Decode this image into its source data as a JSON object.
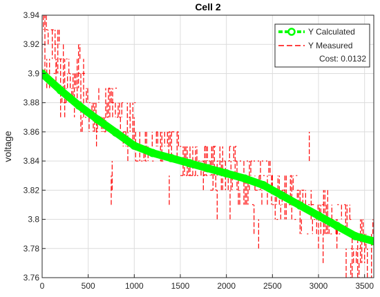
{
  "chart_data": {
    "type": "line",
    "title": "Cell 2",
    "xlabel": "",
    "ylabel": "voltage",
    "xlim": [
      0,
      3600
    ],
    "ylim": [
      3.76,
      3.94
    ],
    "xticks": [
      0,
      500,
      1000,
      1500,
      2000,
      2500,
      3000,
      3500
    ],
    "yticks": [
      3.76,
      3.78,
      3.8,
      3.82,
      3.84,
      3.86,
      3.88,
      3.9,
      3.92,
      3.94
    ],
    "grid": true,
    "legend_position": "top-right",
    "annotation": "Cost: 0.0132",
    "series": [
      {
        "name": "Y Calculated",
        "color": "#00ff00",
        "style": "thick-line-circle-markers",
        "x": [
          0,
          200,
          400,
          600,
          800,
          1000,
          1200,
          1400,
          1600,
          1800,
          2000,
          2200,
          2400,
          2600,
          2800,
          3000,
          3200,
          3400,
          3600
        ],
        "y": [
          3.9,
          3.8885,
          3.878,
          3.8685,
          3.8595,
          3.8505,
          3.8455,
          3.842,
          3.8385,
          3.835,
          3.8315,
          3.828,
          3.8235,
          3.8165,
          3.8095,
          3.8025,
          3.7955,
          3.7885,
          3.785
        ]
      },
      {
        "name": "Y Measured",
        "color": "#ff0000",
        "style": "dashed",
        "bands": [
          {
            "x0": 0,
            "x1": 50,
            "ymin": 3.9,
            "ymax": 3.94
          },
          {
            "x0": 50,
            "x1": 200,
            "ymin": 3.89,
            "ymax": 3.93
          },
          {
            "x0": 200,
            "x1": 420,
            "ymin": 3.87,
            "ymax": 3.92
          },
          {
            "x0": 420,
            "x1": 480,
            "ymin": 3.86,
            "ymax": 3.91
          },
          {
            "x0": 480,
            "x1": 850,
            "ymin": 3.86,
            "ymax": 3.89
          },
          {
            "x0": 850,
            "x1": 1000,
            "ymin": 3.85,
            "ymax": 3.88
          },
          {
            "x0": 1000,
            "x1": 1500,
            "ymin": 3.84,
            "ymax": 3.86
          },
          {
            "x0": 1500,
            "x1": 1750,
            "ymin": 3.83,
            "ymax": 3.85
          },
          {
            "x0": 1750,
            "x1": 2100,
            "ymin": 3.82,
            "ymax": 3.85
          },
          {
            "x0": 2100,
            "x1": 2500,
            "ymin": 3.81,
            "ymax": 3.84
          },
          {
            "x0": 2500,
            "x1": 2800,
            "ymin": 3.8,
            "ymax": 3.83
          },
          {
            "x0": 2800,
            "x1": 3100,
            "ymin": 3.79,
            "ymax": 3.82
          },
          {
            "x0": 3100,
            "x1": 3350,
            "ymin": 3.79,
            "ymax": 3.81
          },
          {
            "x0": 3350,
            "x1": 3600,
            "ymin": 3.76,
            "ymax": 3.8
          }
        ],
        "outliers": [
          {
            "x": 150,
            "y": 3.89
          },
          {
            "x": 590,
            "y": 3.85
          },
          {
            "x": 750,
            "y": 3.81
          },
          {
            "x": 760,
            "y": 3.82
          },
          {
            "x": 930,
            "y": 3.84
          },
          {
            "x": 1380,
            "y": 3.81
          },
          {
            "x": 1900,
            "y": 3.8
          },
          {
            "x": 2040,
            "y": 3.8
          },
          {
            "x": 2300,
            "y": 3.79
          },
          {
            "x": 2350,
            "y": 3.78
          },
          {
            "x": 2900,
            "y": 3.84
          },
          {
            "x": 3000,
            "y": 3.78
          },
          {
            "x": 3050,
            "y": 3.77
          },
          {
            "x": 3200,
            "y": 3.78
          },
          {
            "x": 3300,
            "y": 3.76
          }
        ]
      }
    ]
  }
}
